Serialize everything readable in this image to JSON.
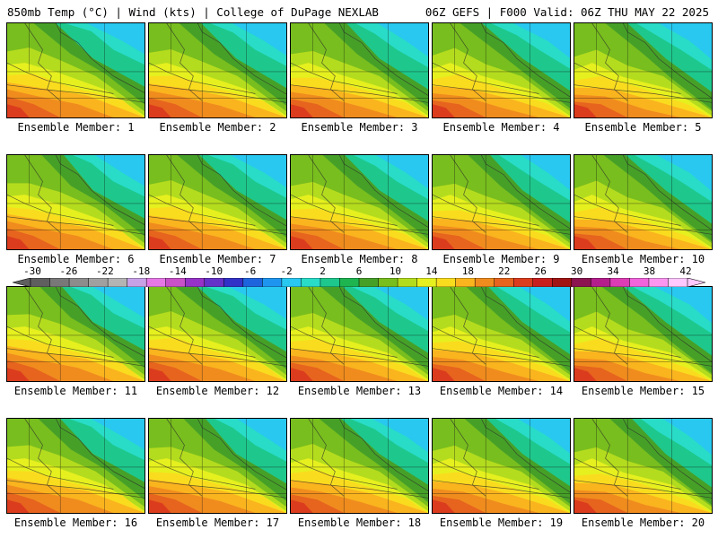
{
  "header": {
    "left": "850mb Temp (°C) | Wind (kts) | College of DuPage NEXLAB",
    "right": "06Z GEFS | F000 Valid: 06Z THU MAY 22 2025"
  },
  "panels": [
    {
      "label": "Ensemble Member: 1"
    },
    {
      "label": "Ensemble Member: 2"
    },
    {
      "label": "Ensemble Member: 3"
    },
    {
      "label": "Ensemble Member: 4"
    },
    {
      "label": "Ensemble Member: 5"
    },
    {
      "label": "Ensemble Member: 6"
    },
    {
      "label": "Ensemble Member: 7"
    },
    {
      "label": "Ensemble Member: 8"
    },
    {
      "label": "Ensemble Member: 9"
    },
    {
      "label": "Ensemble Member: 10"
    },
    {
      "label": "Ensemble Member: 11"
    },
    {
      "label": "Ensemble Member: 12"
    },
    {
      "label": "Ensemble Member: 13"
    },
    {
      "label": "Ensemble Member: 14"
    },
    {
      "label": "Ensemble Member: 15"
    },
    {
      "label": "Ensemble Member: 16"
    },
    {
      "label": "Ensemble Member: 17"
    },
    {
      "label": "Ensemble Member: 18"
    },
    {
      "label": "Ensemble Member: 19"
    },
    {
      "label": "Ensemble Member: 20"
    }
  ],
  "colorbar": {
    "ticks": [
      "-30",
      "-26",
      "-22",
      "-18",
      "-14",
      "-10",
      "-6",
      "-2",
      "2",
      "6",
      "10",
      "14",
      "18",
      "22",
      "26",
      "30",
      "34",
      "38",
      "42"
    ],
    "colors": [
      "#5f5f5f",
      "#787878",
      "#8c8c8c",
      "#a0a0a0",
      "#b4b4b4",
      "#c8a0e6",
      "#e678e6",
      "#c850c8",
      "#9632c8",
      "#6432c8",
      "#3232c8",
      "#1e64dc",
      "#1e96f0",
      "#28c8f0",
      "#28dcc8",
      "#1ec88c",
      "#1eb450",
      "#46a028",
      "#78be1e",
      "#b4dc1e",
      "#e6f01e",
      "#fadc1e",
      "#fab41e",
      "#f08c1e",
      "#e6641e",
      "#dc3c1e",
      "#c81e1e",
      "#a01414",
      "#8c1450",
      "#b41e8c",
      "#dc3cb4",
      "#f064dc",
      "#fa96f0",
      "#ffc8ff"
    ]
  }
}
